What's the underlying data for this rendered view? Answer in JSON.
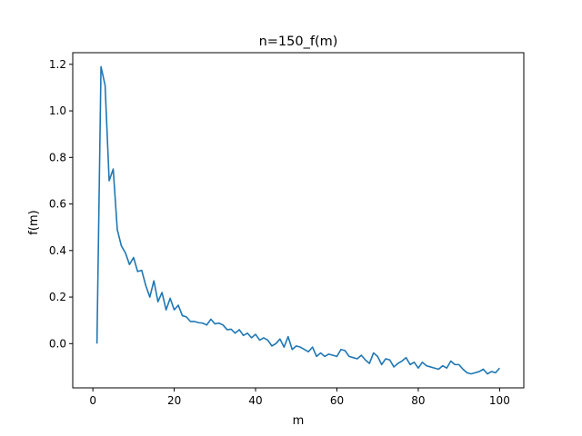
{
  "chart_data": {
    "type": "line",
    "title": "n=150_f(m)",
    "xlabel": "m",
    "ylabel": "f(m)",
    "xlim": [
      -4.95,
      105.95
    ],
    "ylim": [
      -0.19,
      1.25
    ],
    "xticks": [
      0,
      20,
      40,
      60,
      80,
      100
    ],
    "xtick_labels": [
      "0",
      "20",
      "40",
      "60",
      "80",
      "100"
    ],
    "yticks": [
      0.0,
      0.2,
      0.4,
      0.6,
      0.8,
      1.0,
      1.2
    ],
    "ytick_labels": [
      "0.0",
      "0.2",
      "0.4",
      "0.6",
      "0.8",
      "1.0",
      "1.2"
    ],
    "grid": false,
    "series": [
      {
        "color": "#1f77b4",
        "x": [
          1,
          2,
          3,
          4,
          5,
          6,
          7,
          8,
          9,
          10,
          11,
          12,
          13,
          14,
          15,
          16,
          17,
          18,
          19,
          20,
          21,
          22,
          23,
          24,
          25,
          26,
          27,
          28,
          29,
          30,
          31,
          32,
          33,
          34,
          35,
          36,
          37,
          38,
          39,
          40,
          41,
          42,
          43,
          44,
          45,
          46,
          47,
          48,
          49,
          50,
          51,
          52,
          53,
          54,
          55,
          56,
          57,
          58,
          59,
          60,
          61,
          62,
          63,
          64,
          65,
          66,
          67,
          68,
          69,
          70,
          71,
          72,
          73,
          74,
          75,
          76,
          77,
          78,
          79,
          80,
          81,
          82,
          83,
          84,
          85,
          86,
          87,
          88,
          89,
          90,
          91,
          92,
          93,
          94,
          95,
          96,
          97,
          98,
          99,
          100
        ],
        "y": [
          0.0,
          1.19,
          1.11,
          0.7,
          0.75,
          0.49,
          0.42,
          0.39,
          0.34,
          0.37,
          0.31,
          0.315,
          0.25,
          0.2,
          0.27,
          0.18,
          0.22,
          0.145,
          0.195,
          0.145,
          0.165,
          0.12,
          0.115,
          0.095,
          0.095,
          0.09,
          0.088,
          0.08,
          0.105,
          0.085,
          0.088,
          0.08,
          0.06,
          0.062,
          0.045,
          0.06,
          0.035,
          0.045,
          0.025,
          0.04,
          0.015,
          0.025,
          0.015,
          -0.01,
          0.0,
          0.02,
          -0.015,
          0.03,
          -0.025,
          -0.01,
          -0.015,
          -0.025,
          -0.035,
          -0.015,
          -0.055,
          -0.04,
          -0.055,
          -0.045,
          -0.05,
          -0.055,
          -0.025,
          -0.03,
          -0.055,
          -0.06,
          -0.065,
          -0.05,
          -0.07,
          -0.085,
          -0.04,
          -0.055,
          -0.09,
          -0.065,
          -0.07,
          -0.1,
          -0.085,
          -0.075,
          -0.06,
          -0.09,
          -0.08,
          -0.105,
          -0.08,
          -0.095,
          -0.1,
          -0.105,
          -0.11,
          -0.095,
          -0.105,
          -0.075,
          -0.09,
          -0.09,
          -0.11,
          -0.125,
          -0.13,
          -0.125,
          -0.12,
          -0.11,
          -0.13,
          -0.12,
          -0.125,
          -0.105
        ]
      }
    ]
  }
}
